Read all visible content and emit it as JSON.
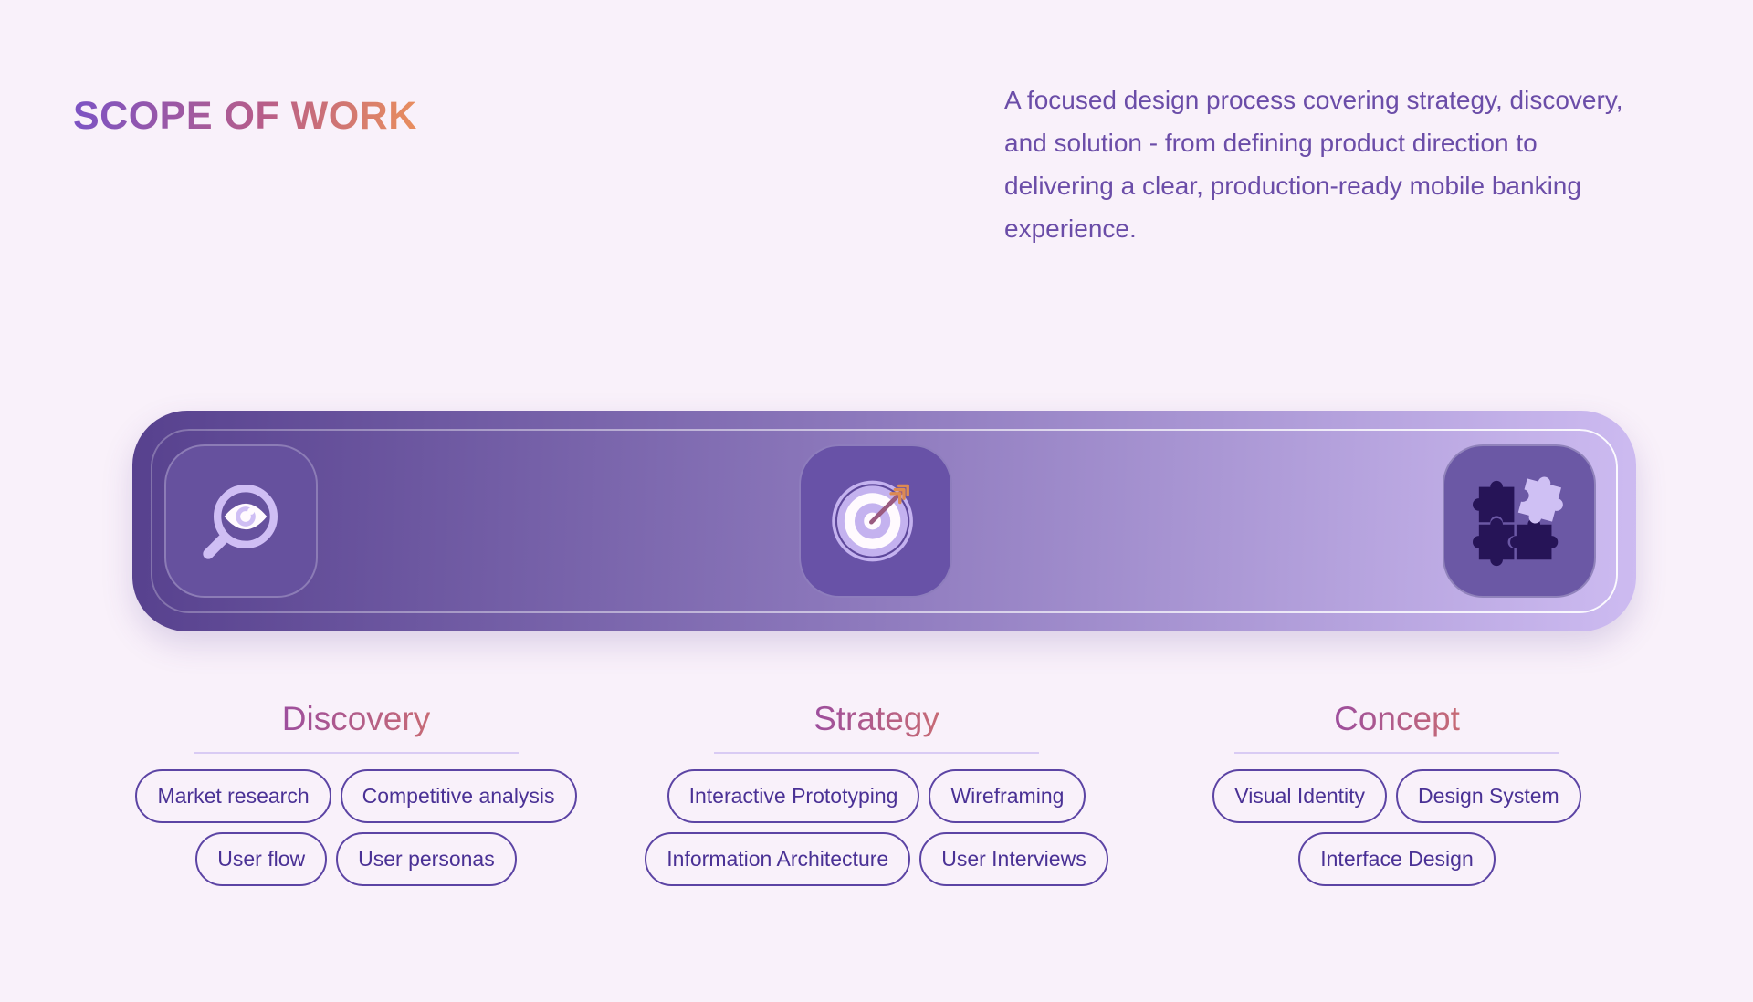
{
  "header": {
    "title": "SCOPE OF WORK",
    "description": "A focused design process covering strategy, discovery, and solution - from defining product direction to delivering a clear, production-ready mobile banking experience."
  },
  "process_bar": {
    "tiles": [
      {
        "phase": "Discovery",
        "icon": "magnifier-eye-icon"
      },
      {
        "phase": "Strategy",
        "icon": "target-arrow-icon"
      },
      {
        "phase": "Concept",
        "icon": "puzzle-pieces-icon"
      }
    ]
  },
  "phases": [
    {
      "name": "Discovery",
      "tags": [
        "Market research",
        "Competitive analysis",
        "User flow",
        "User personas"
      ]
    },
    {
      "name": "Strategy",
      "tags": [
        "Interactive Prototyping",
        "Wireframing",
        "Information Architecture",
        "User Interviews"
      ]
    },
    {
      "name": "Concept",
      "tags": [
        "Visual Identity",
        "Design System",
        "Interface Design"
      ]
    }
  ],
  "palette": {
    "page_background": "#f9f1fa",
    "title_gradient": [
      "#7c53c4",
      "#e98e5e"
    ],
    "heading_gradient": [
      "#9d4e9d",
      "#c76b75"
    ],
    "body_text": "#6b4da8",
    "bar_gradient": [
      "#57418e",
      "#cdbbf1"
    ],
    "tile_fill": "#66519e",
    "icon_lavender": "#cfbef4",
    "puzzle_dark": "#261457",
    "arrow_shaft": "#9a5a80",
    "arrow_fletching": "#dd8a52",
    "pill_border": "#5c44a4",
    "pill_text": "#4a3195",
    "divider": "#d9cbf4"
  }
}
